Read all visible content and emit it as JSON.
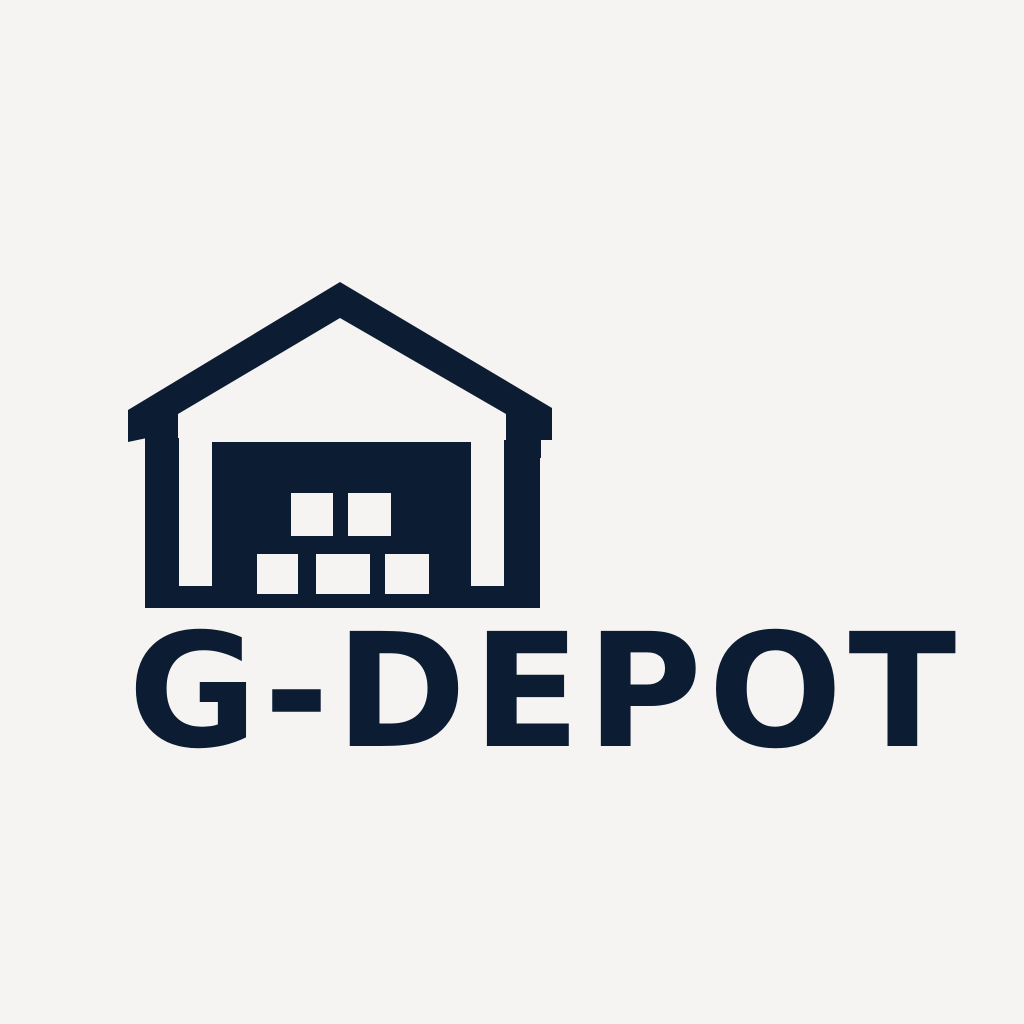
{
  "logo": {
    "icon": "warehouse-with-boxes-icon",
    "wordmark": "G-DEPOT",
    "brand_color": "#0c1c33",
    "background_color": "#f6f4f2"
  }
}
